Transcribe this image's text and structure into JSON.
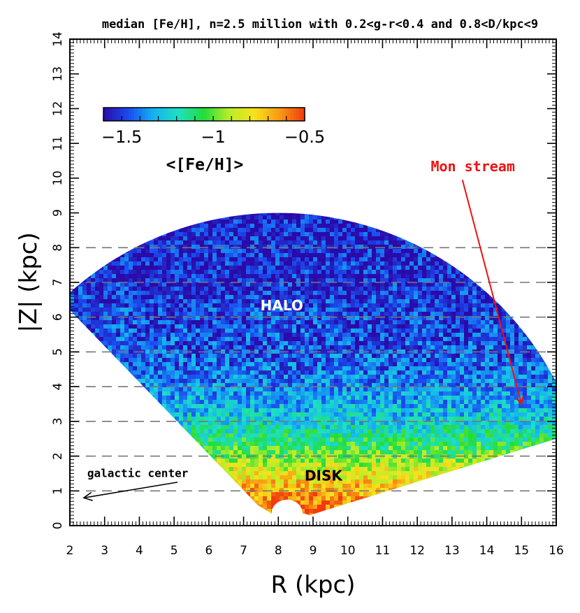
{
  "chart_data": {
    "type": "heatmap",
    "title": "median [Fe/H], n=2.5 million with 0.2<g-r<0.4 and 0.8<D/kpc<9",
    "xlabel": "R (kpc)",
    "ylabel": "|Z| (kpc)",
    "xlim": [
      2,
      16
    ],
    "ylim": [
      0,
      14
    ],
    "xticks": [
      "2",
      "3",
      "4",
      "5",
      "6",
      "7",
      "8",
      "9",
      "10",
      "11",
      "12",
      "13",
      "14",
      "15",
      "16"
    ],
    "yticks": [
      "0",
      "1",
      "2",
      "3",
      "4",
      "5",
      "6",
      "7",
      "8",
      "9",
      "10",
      "11",
      "12",
      "13",
      "14"
    ],
    "reference_lines_z": [
      1,
      2,
      3,
      4,
      5,
      6,
      7,
      8
    ],
    "colorbar": {
      "label": "<[Fe/H]>",
      "range": [
        -1.6,
        -0.5
      ],
      "tick_labels": [
        "−1.5",
        "−1",
        "−0.5"
      ],
      "tick_values": [
        -1.5,
        -1.0,
        -0.5
      ],
      "colors": [
        "#2a0aa8",
        "#1a4cf0",
        "#14b4f0",
        "#1fe0c0",
        "#22dd3a",
        "#b8ee2a",
        "#f7e21c",
        "#f79a14",
        "#f23a0c"
      ]
    },
    "footprint": {
      "sun_R": 8.0,
      "max_distance_kpc": 9,
      "min_distance_kpc": 0.8,
      "min_Z_kpc": 0.3
    },
    "metallicity_trend": [
      {
        "Z": 0.5,
        "feh": -0.55
      },
      {
        "Z": 1.0,
        "feh": -0.68
      },
      {
        "Z": 1.5,
        "feh": -0.82
      },
      {
        "Z": 2.0,
        "feh": -0.98
      },
      {
        "Z": 2.5,
        "feh": -1.12
      },
      {
        "Z": 3.0,
        "feh": -1.25
      },
      {
        "Z": 4.0,
        "feh": -1.38
      },
      {
        "Z": 5.0,
        "feh": -1.46
      },
      {
        "Z": 7.0,
        "feh": -1.52
      },
      {
        "Z": 9.0,
        "feh": -1.55
      }
    ],
    "annotations": [
      {
        "text": "HALO",
        "R": 8.1,
        "Z": 6.2,
        "color": "#ffffff"
      },
      {
        "text": "DISK",
        "R": 9.3,
        "Z": 1.3,
        "color": "#000000"
      },
      {
        "text": "Mon stream",
        "R": 13.6,
        "Z": 10.2,
        "color": "#ee1111",
        "arrow_to": {
          "R": 15.0,
          "Z": 3.5
        }
      },
      {
        "text": "galactic center",
        "R": 2.5,
        "Z": 1.4,
        "color": "#000000",
        "arrow_to": {
          "R": 2.4,
          "Z": 0.8
        }
      }
    ]
  }
}
